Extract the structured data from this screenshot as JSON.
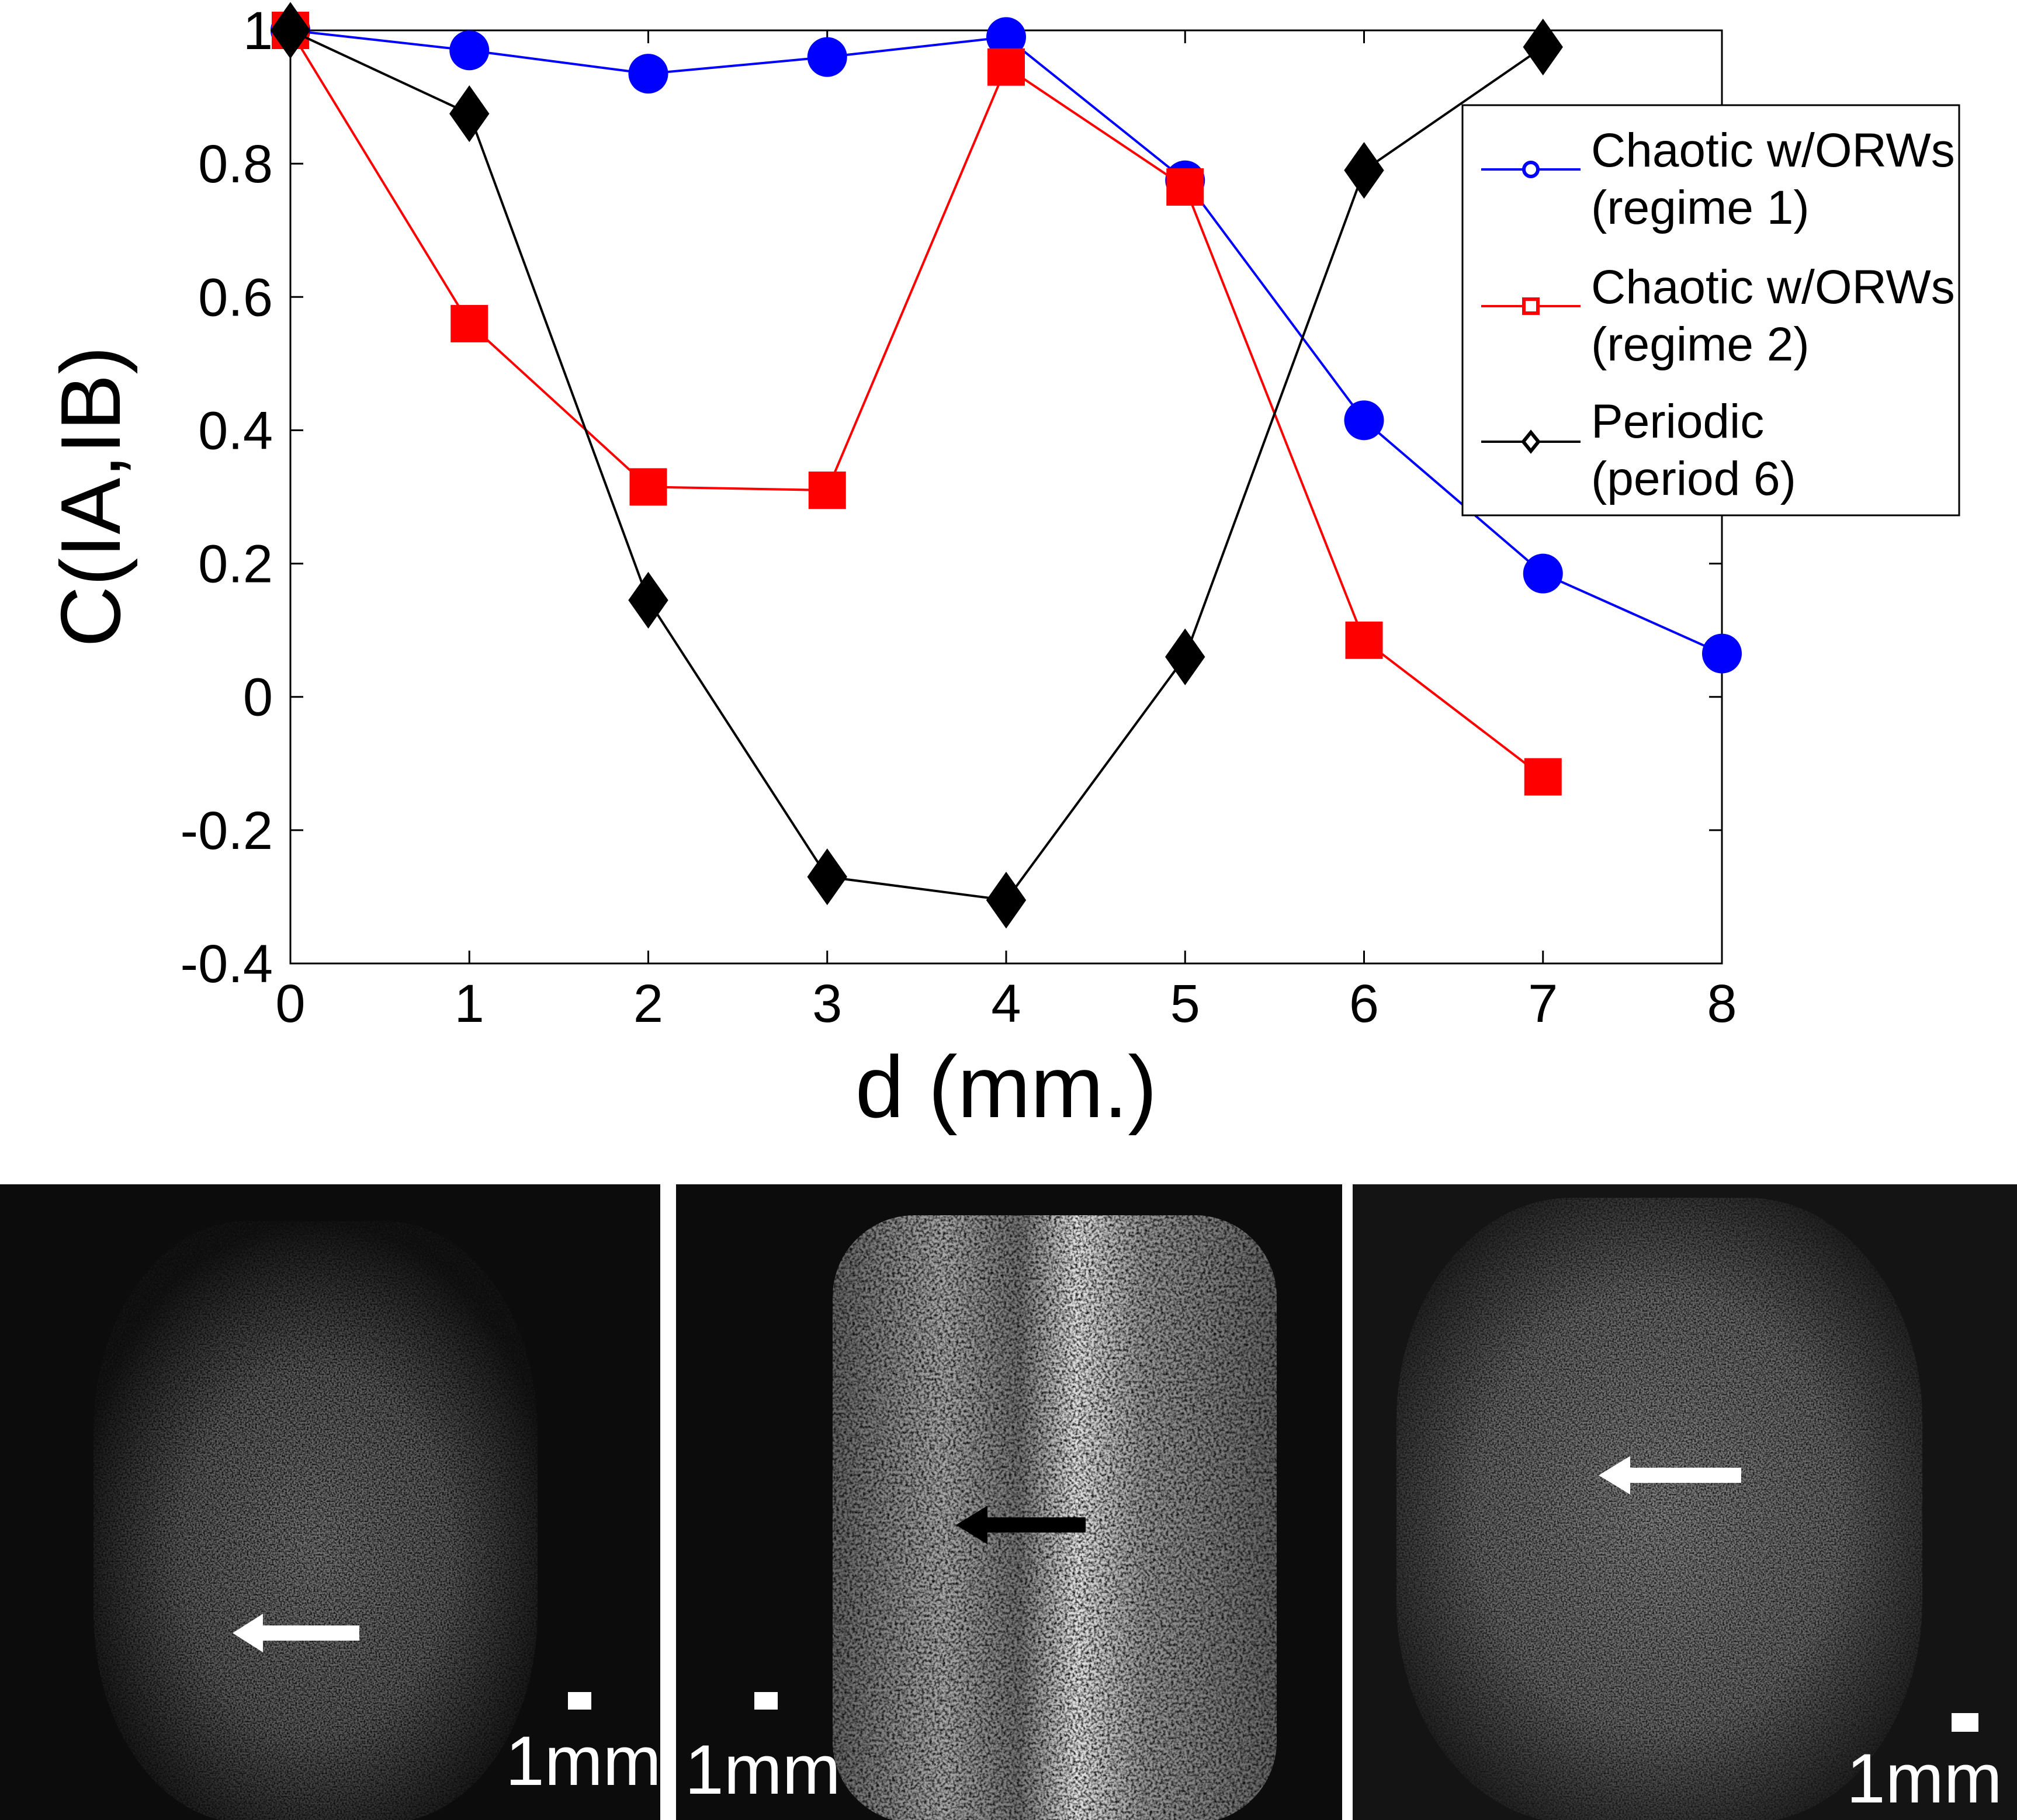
{
  "chart_data": {
    "type": "line",
    "title": "",
    "xlabel": "d (mm.)",
    "ylabel": "C(IA,IB)",
    "xlim": [
      0,
      8
    ],
    "ylim": [
      -0.4,
      1
    ],
    "xticks": [
      "0",
      "1",
      "2",
      "3",
      "4",
      "5",
      "6",
      "7",
      "8"
    ],
    "yticks": [
      "1",
      "0.8",
      "0.6",
      "0.4",
      "0.2",
      "0",
      "-0.2",
      "-0.4"
    ],
    "grid": false,
    "legend_position": "top-right",
    "series": [
      {
        "name_line1": "Chaotic w/ORWs",
        "name_line2": "(regime 1)",
        "color": "#0000ff",
        "marker": "circle",
        "x": [
          0,
          1,
          2,
          3,
          4,
          5,
          6,
          7,
          8
        ],
        "y": [
          1.0,
          0.97,
          0.935,
          0.96,
          0.99,
          0.775,
          0.415,
          0.185,
          0.065
        ]
      },
      {
        "name_line1": "Chaotic w/ORWs",
        "name_line2": "(regime 2)",
        "color": "#ff0000",
        "marker": "square",
        "x": [
          0,
          1,
          2,
          3,
          4,
          5,
          6,
          7
        ],
        "y": [
          1.0,
          0.56,
          0.315,
          0.31,
          0.945,
          0.765,
          0.085,
          -0.12
        ]
      },
      {
        "name_line1": "Periodic",
        "name_line2": "(period 6)",
        "color": "#000000",
        "marker": "diamond",
        "x": [
          0,
          1,
          2,
          3,
          4,
          5,
          6,
          7
        ],
        "y": [
          1.0,
          0.875,
          0.145,
          -0.27,
          -0.305,
          0.06,
          0.79,
          0.975
        ]
      }
    ]
  },
  "images": [
    {
      "scale_label": "1mm",
      "arrow_color": "#ffffff"
    },
    {
      "scale_label": "1mm",
      "arrow_color": "#000000"
    },
    {
      "scale_label": "1mm",
      "arrow_color": "#ffffff"
    }
  ]
}
